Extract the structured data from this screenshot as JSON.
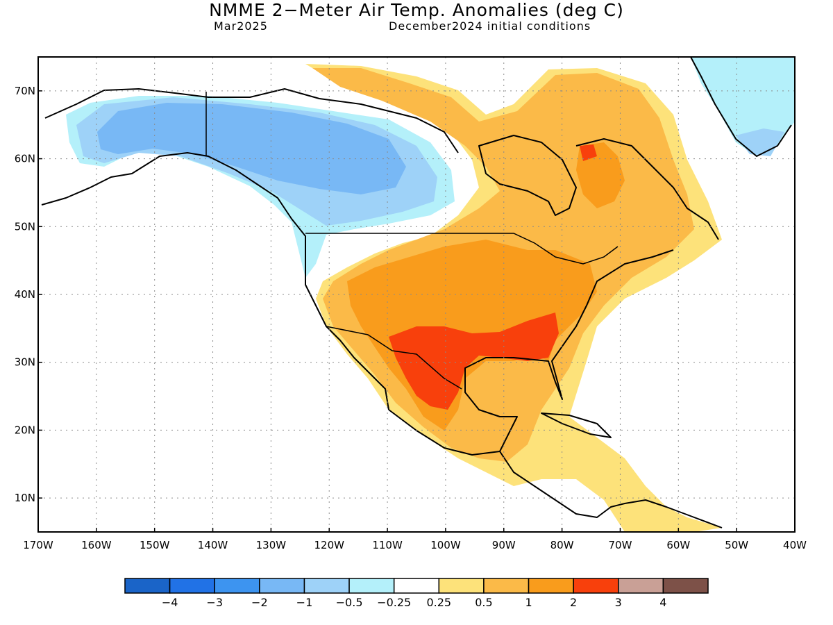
{
  "title": "NMME 2−Meter Air Temp. Anomalies (deg C)",
  "valid_month": "Mar2025",
  "initial_conditions": "December2024 initial conditions",
  "map": {
    "lon_range": [
      -170,
      -40
    ],
    "lat_range": [
      5,
      75
    ],
    "lat_labels": [
      "10N",
      "20N",
      "30N",
      "40N",
      "50N",
      "60N",
      "70N"
    ],
    "lat_values": [
      10,
      20,
      30,
      40,
      50,
      60,
      70
    ],
    "lon_labels": [
      "170W",
      "160W",
      "150W",
      "140W",
      "130W",
      "120W",
      "110W",
      "100W",
      "90W",
      "80W",
      "70W",
      "60W",
      "50W",
      "40W"
    ],
    "lon_values": [
      -170,
      -160,
      -150,
      -140,
      -130,
      -120,
      -110,
      -100,
      -90,
      -80,
      -70,
      -60,
      -50,
      -40
    ],
    "gridlines": "dotted"
  },
  "colorbar": {
    "labels": [
      "−4",
      "−3",
      "−2",
      "−1",
      "−0.5",
      "−0.25",
      "0.25",
      "0.5",
      "1",
      "2",
      "3",
      "4"
    ],
    "bins": [
      {
        "range": "< -4",
        "color": "#1a64c8"
      },
      {
        "range": "-4 to -3",
        "color": "#2172e6"
      },
      {
        "range": "-3 to -2",
        "color": "#3d94f0"
      },
      {
        "range": "-2 to -1",
        "color": "#78b8f5"
      },
      {
        "range": "-1 to -0.5",
        "color": "#9ed2f8"
      },
      {
        "range": "-0.5 to -0.25",
        "color": "#b4f0fa"
      },
      {
        "range": "-0.25 to 0.25",
        "color": "#ffffff"
      },
      {
        "range": "0.25 to 0.5",
        "color": "#fde27a"
      },
      {
        "range": "0.5 to 1",
        "color": "#fbba48"
      },
      {
        "range": "1 to 2",
        "color": "#f99c1c"
      },
      {
        "range": "2 to 3",
        "color": "#f8400c"
      },
      {
        "range": "3 to 4",
        "color": "#c9a096"
      },
      {
        "range": "> 4",
        "color": "#7d5148"
      }
    ]
  }
}
